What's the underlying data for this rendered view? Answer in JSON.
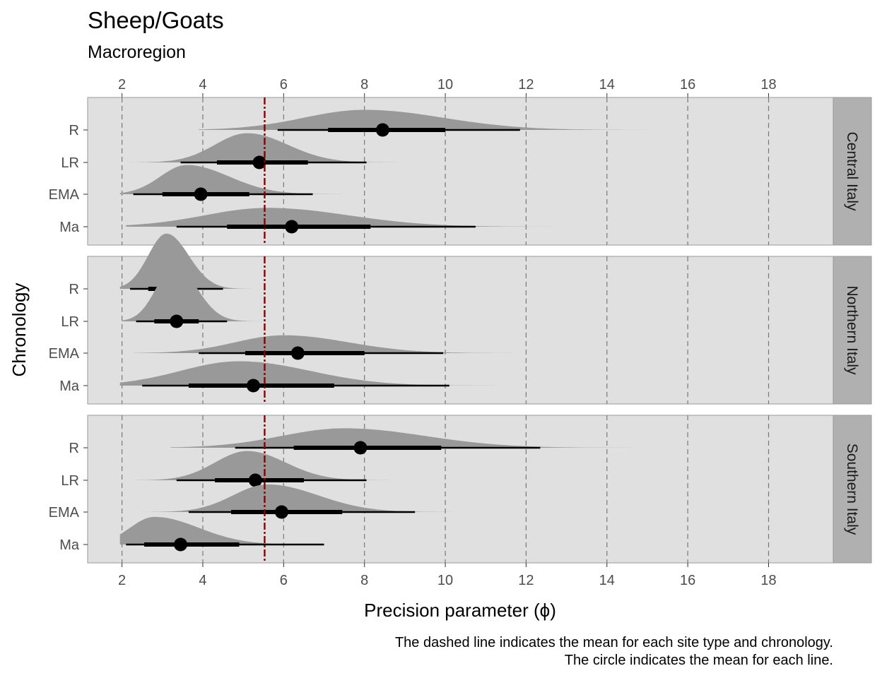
{
  "chart_data": {
    "type": "halfeye",
    "title": "Sheep/Goats",
    "subtitle": "Macroregion",
    "xlabel": "Precision parameter (ϕ)",
    "ylabel": "Chronology",
    "caption": [
      "The dashed line indicates the mean for each site type and chronology.",
      "The circle indicates the mean for each line."
    ],
    "xlim": [
      1.15,
      19.6
    ],
    "xticks": [
      2,
      4,
      6,
      8,
      10,
      12,
      14,
      16,
      18
    ],
    "reference_line": 5.53,
    "colors": {
      "panel_bg": "#e0e0e0",
      "strip_bg": "#b0b0b0",
      "density": "#999999",
      "interval": "#000000",
      "reference_line": "#8b0000",
      "grid": "#777777"
    },
    "panels": [
      {
        "name": "Central Italy",
        "rows": [
          {
            "label": "R",
            "mean": 8.45,
            "inner": [
              7.1,
              10.0
            ],
            "outer": [
              5.85,
              11.85
            ],
            "density": {
              "min": 3.9,
              "mode": 8.0,
              "max": 15.6,
              "sd_left": 1.5,
              "sd_right": 1.95,
              "height": 0.62
            }
          },
          {
            "label": "LR",
            "mean": 5.4,
            "inner": [
              4.35,
              6.6
            ],
            "outer": [
              3.45,
              8.05
            ],
            "density": {
              "min": 2.2,
              "mode": 5.1,
              "max": 11.0,
              "sd_left": 0.8,
              "sd_right": 1.0,
              "height": 0.9
            }
          },
          {
            "label": "EMA",
            "mean": 3.95,
            "inner": [
              3.0,
              5.15
            ],
            "outer": [
              2.28,
              6.72
            ],
            "density": {
              "min": 1.95,
              "mode": 3.6,
              "max": 10.0,
              "sd_left": 0.65,
              "sd_right": 1.05,
              "height": 0.9
            }
          },
          {
            "label": "Ma",
            "mean": 6.2,
            "inner": [
              4.6,
              8.15
            ],
            "outer": [
              3.35,
              10.75
            ],
            "density": {
              "min": 2.1,
              "mode": 5.6,
              "max": 15.5,
              "sd_left": 1.55,
              "sd_right": 2.0,
              "height": 0.58
            }
          }
        ]
      },
      {
        "name": "Northern Italy",
        "rows": [
          {
            "label": "R",
            "mean": 3.15,
            "inner": [
              2.65,
              3.75
            ],
            "outer": [
              2.2,
              4.5
            ],
            "density": {
              "min": 1.95,
              "mode": 3.1,
              "max": 5.7,
              "sd_left": 0.45,
              "sd_right": 0.55,
              "height": 1.7
            }
          },
          {
            "label": "LR",
            "mean": 3.35,
            "inner": [
              2.8,
              3.9
            ],
            "outer": [
              2.35,
              4.6
            ],
            "density": {
              "min": 2.0,
              "mode": 3.3,
              "max": 6.0,
              "sd_left": 0.45,
              "sd_right": 0.55,
              "height": 1.7
            }
          },
          {
            "label": "EMA",
            "mean": 6.35,
            "inner": [
              5.05,
              8.0
            ],
            "outer": [
              3.9,
              9.95
            ],
            "density": {
              "min": 2.3,
              "mode": 6.0,
              "max": 13.1,
              "sd_left": 1.2,
              "sd_right": 1.6,
              "height": 0.55
            }
          },
          {
            "label": "Ma",
            "mean": 5.25,
            "inner": [
              3.65,
              7.25
            ],
            "outer": [
              2.5,
              10.1
            ],
            "density": {
              "min": 1.95,
              "mode": 4.9,
              "max": 14.3,
              "sd_left": 1.45,
              "sd_right": 1.75,
              "height": 0.75
            }
          }
        ]
      },
      {
        "name": "Southern Italy",
        "rows": [
          {
            "label": "R",
            "mean": 7.9,
            "inner": [
              6.25,
              9.9
            ],
            "outer": [
              4.8,
              12.35
            ],
            "density": {
              "min": 3.2,
              "mode": 7.5,
              "max": 16.0,
              "sd_left": 1.55,
              "sd_right": 2.0,
              "height": 0.6
            }
          },
          {
            "label": "LR",
            "mean": 5.3,
            "inner": [
              4.3,
              6.5
            ],
            "outer": [
              3.35,
              8.05
            ],
            "density": {
              "min": 2.3,
              "mode": 5.1,
              "max": 10.9,
              "sd_left": 0.8,
              "sd_right": 0.95,
              "height": 0.9
            }
          },
          {
            "label": "EMA",
            "mean": 5.95,
            "inner": [
              4.7,
              7.45
            ],
            "outer": [
              3.65,
              9.25
            ],
            "density": {
              "min": 2.4,
              "mode": 5.6,
              "max": 11.9,
              "sd_left": 0.85,
              "sd_right": 1.25,
              "height": 0.85
            }
          },
          {
            "label": "Ma",
            "mean": 3.45,
            "inner": [
              2.55,
              4.9
            ],
            "outer": [
              2.1,
              7.0
            ],
            "density": {
              "min": 1.95,
              "mode": 2.8,
              "max": 10.0,
              "sd_left": 0.6,
              "sd_right": 1.1,
              "height": 0.85
            }
          }
        ]
      }
    ]
  }
}
